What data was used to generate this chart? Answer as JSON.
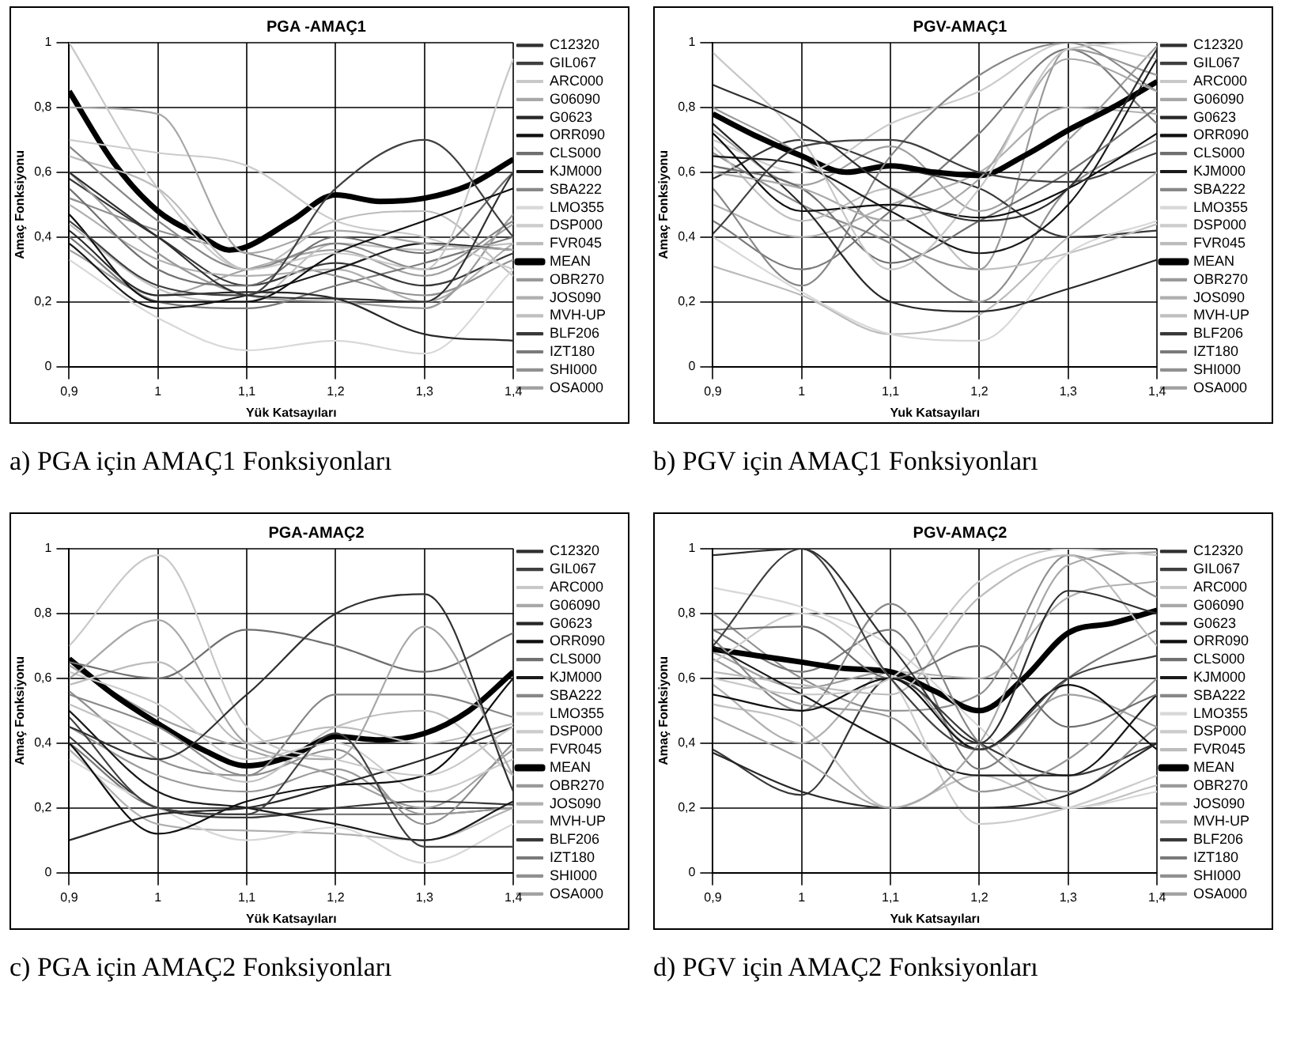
{
  "chart_data": [
    {
      "type": "line",
      "title": "PGA -AMAÇ1",
      "xlabel": "Yük Katsayıları",
      "ylabel": "Amaç Fonksiyonu",
      "annotations": [
        "a) PGA için AMAÇ1 Fonksiyonları"
      ],
      "legend": "right",
      "grid": true,
      "xlim": [
        0.9,
        1.4
      ],
      "xticks": [
        {
          "value": 0.9,
          "label": "0,9"
        },
        {
          "value": 1,
          "label": "1"
        },
        {
          "value": 1.1,
          "label": "1,1"
        },
        {
          "value": 1.2,
          "label": "1,2"
        },
        {
          "value": 1.3,
          "label": "1,3"
        },
        {
          "value": 1.4,
          "label": "1,4"
        }
      ],
      "ylim": [
        0,
        1
      ],
      "yticks": [
        {
          "value": 0,
          "label": "0"
        },
        {
          "value": 0.2,
          "label": "0,2"
        },
        {
          "value": 0.4,
          "label": "0,4"
        },
        {
          "value": 0.6,
          "label": "0,6"
        },
        {
          "value": 0.8,
          "label": "0,8"
        },
        {
          "value": 1,
          "label": "1"
        }
      ],
      "x": [
        0.9,
        1.0,
        1.1,
        1.2,
        1.3,
        1.4
      ],
      "series": [
        {
          "name": "C12320",
          "color": "#303030",
          "values": [
            0.6,
            0.4,
            0.22,
            0.21,
            0.2,
            0.6
          ]
        },
        {
          "name": "GIL067",
          "color": "#404040",
          "values": [
            0.45,
            0.25,
            0.22,
            0.55,
            0.7,
            0.4
          ]
        },
        {
          "name": "ARC000",
          "color": "#c8c8c8",
          "values": [
            1.0,
            0.55,
            0.3,
            0.35,
            0.3,
            0.95
          ]
        },
        {
          "name": "G06090",
          "color": "#a8a8a8",
          "values": [
            0.8,
            0.78,
            0.35,
            0.42,
            0.38,
            0.36
          ]
        },
        {
          "name": "G0623",
          "color": "#282828",
          "values": [
            0.42,
            0.22,
            0.23,
            0.21,
            0.1,
            0.08
          ]
        },
        {
          "name": "ORR090",
          "color": "#101010",
          "values": [
            0.47,
            0.2,
            0.2,
            0.35,
            0.45,
            0.55
          ]
        },
        {
          "name": "CLS000",
          "color": "#707070",
          "values": [
            0.55,
            0.3,
            0.25,
            0.4,
            0.35,
            0.6
          ]
        },
        {
          "name": "KJM000",
          "color": "#1a1a1a",
          "values": [
            0.38,
            0.18,
            0.22,
            0.3,
            0.38,
            0.36
          ]
        },
        {
          "name": "SBA222",
          "color": "#888888",
          "values": [
            0.68,
            0.45,
            0.3,
            0.38,
            0.3,
            0.45
          ]
        },
        {
          "name": "LMO355",
          "color": "#d8d8d8",
          "values": [
            0.33,
            0.15,
            0.05,
            0.08,
            0.04,
            0.3
          ]
        },
        {
          "name": "DSP000",
          "color": "#cccccc",
          "values": [
            0.7,
            0.66,
            0.62,
            0.45,
            0.4,
            0.3
          ]
        },
        {
          "name": "FVR045",
          "color": "#bcbcbc",
          "values": [
            0.65,
            0.55,
            0.3,
            0.45,
            0.48,
            0.28
          ]
        },
        {
          "name": "MEAN",
          "color": "#000000",
          "x": [
            0.9,
            0.95,
            1.0,
            1.05,
            1.08,
            1.1,
            1.15,
            1.2,
            1.25,
            1.3,
            1.35,
            1.4
          ],
          "values": [
            0.85,
            0.63,
            0.48,
            0.4,
            0.36,
            0.37,
            0.45,
            0.53,
            0.51,
            0.52,
            0.56,
            0.64
          ]
        },
        {
          "name": "OBR270",
          "color": "#9a9a9a",
          "values": [
            0.6,
            0.35,
            0.22,
            0.2,
            0.18,
            0.47
          ]
        },
        {
          "name": "JOS090",
          "color": "#b0b0b0",
          "values": [
            0.5,
            0.33,
            0.28,
            0.3,
            0.2,
            0.38
          ]
        },
        {
          "name": "MVH-UP",
          "color": "#c0c0c0",
          "values": [
            0.44,
            0.24,
            0.2,
            0.38,
            0.36,
            0.38
          ]
        },
        {
          "name": "BLF206",
          "color": "#383838",
          "values": [
            0.58,
            0.4,
            0.25,
            0.32,
            0.25,
            0.35
          ]
        },
        {
          "name": "IZT180",
          "color": "#7a7a7a",
          "values": [
            0.4,
            0.2,
            0.18,
            0.25,
            0.32,
            0.4
          ]
        },
        {
          "name": "SHI000",
          "color": "#909090",
          "values": [
            0.52,
            0.42,
            0.35,
            0.28,
            0.22,
            0.33
          ]
        },
        {
          "name": "OSA000",
          "color": "#a0a0a0",
          "values": [
            0.36,
            0.22,
            0.3,
            0.36,
            0.28,
            0.44
          ]
        }
      ]
    },
    {
      "type": "line",
      "title": "PGV-AMAÇ1",
      "xlabel": "Yuk Katsayıları",
      "ylabel": "Amaç Fonksiyonu",
      "annotations": [
        "b) PGV için AMAÇ1 Fonksiyonları"
      ],
      "legend": "right",
      "grid": true,
      "xlim": [
        0.9,
        1.4
      ],
      "xticks": [
        {
          "value": 0.9,
          "label": "0,9"
        },
        {
          "value": 1,
          "label": "1"
        },
        {
          "value": 1.1,
          "label": "1,1"
        },
        {
          "value": 1.2,
          "label": "1,2"
        },
        {
          "value": 1.3,
          "label": "1,3"
        },
        {
          "value": 1.4,
          "label": "1,4"
        }
      ],
      "ylim": [
        0,
        1
      ],
      "yticks": [
        {
          "value": 0,
          "label": "0"
        },
        {
          "value": 0.2,
          "label": "0,2"
        },
        {
          "value": 0.4,
          "label": "0,4"
        },
        {
          "value": 0.6,
          "label": "0,6"
        },
        {
          "value": 0.8,
          "label": "0,8"
        },
        {
          "value": 1,
          "label": "1"
        }
      ],
      "x": [
        0.9,
        1.0,
        1.1,
        1.2,
        1.3,
        1.4
      ],
      "series": [
        {
          "name": "C12320",
          "color": "#303030",
          "values": [
            0.87,
            0.75,
            0.55,
            0.45,
            0.55,
            0.98
          ]
        },
        {
          "name": "GIL067",
          "color": "#404040",
          "values": [
            0.41,
            0.68,
            0.7,
            0.6,
            0.57,
            0.66
          ]
        },
        {
          "name": "ARC000",
          "color": "#c8c8c8",
          "values": [
            0.97,
            0.7,
            0.3,
            0.55,
            0.98,
            1.0
          ]
        },
        {
          "name": "G06090",
          "color": "#a8a8a8",
          "values": [
            0.6,
            0.55,
            0.45,
            0.58,
            0.95,
            0.85
          ]
        },
        {
          "name": "G0623",
          "color": "#282828",
          "values": [
            0.75,
            0.5,
            0.2,
            0.17,
            0.24,
            0.33
          ]
        },
        {
          "name": "ORR090",
          "color": "#101010",
          "values": [
            0.72,
            0.48,
            0.5,
            0.46,
            0.55,
            0.72
          ]
        },
        {
          "name": "CLS000",
          "color": "#707070",
          "values": [
            0.62,
            0.55,
            0.32,
            0.45,
            0.6,
            0.8
          ]
        },
        {
          "name": "KJM000",
          "color": "#1a1a1a",
          "values": [
            0.65,
            0.62,
            0.48,
            0.35,
            0.5,
            0.95
          ]
        },
        {
          "name": "SBA222",
          "color": "#888888",
          "values": [
            0.55,
            0.25,
            0.65,
            0.9,
            1.0,
            0.85
          ]
        },
        {
          "name": "LMO355",
          "color": "#d8d8d8",
          "values": [
            0.4,
            0.23,
            0.1,
            0.08,
            0.35,
            0.45
          ]
        },
        {
          "name": "DSP000",
          "color": "#cccccc",
          "values": [
            0.7,
            0.6,
            0.75,
            0.85,
            1.0,
            0.95
          ]
        },
        {
          "name": "FVR045",
          "color": "#bcbcbc",
          "values": [
            0.31,
            0.22,
            0.1,
            0.16,
            0.4,
            0.6
          ]
        },
        {
          "name": "MEAN",
          "color": "#000000",
          "x": [
            0.9,
            0.95,
            1.0,
            1.05,
            1.1,
            1.15,
            1.2,
            1.25,
            1.3,
            1.35,
            1.4
          ],
          "values": [
            0.78,
            0.71,
            0.65,
            0.6,
            0.62,
            0.6,
            0.59,
            0.65,
            0.73,
            0.8,
            0.88
          ]
        },
        {
          "name": "OBR270",
          "color": "#9a9a9a",
          "values": [
            0.8,
            0.65,
            0.4,
            0.3,
            0.98,
            0.9
          ]
        },
        {
          "name": "JOS090",
          "color": "#b0b0b0",
          "values": [
            0.5,
            0.4,
            0.5,
            0.6,
            0.8,
            0.78
          ]
        },
        {
          "name": "MVH-UP",
          "color": "#c0c0c0",
          "values": [
            0.68,
            0.45,
            0.55,
            0.3,
            0.35,
            0.44
          ]
        },
        {
          "name": "BLF206",
          "color": "#383838",
          "values": [
            0.58,
            0.7,
            0.62,
            0.55,
            0.4,
            0.42
          ]
        },
        {
          "name": "IZT180",
          "color": "#7a7a7a",
          "values": [
            0.45,
            0.3,
            0.48,
            0.72,
            0.98,
            0.75
          ]
        },
        {
          "name": "SHI000",
          "color": "#909090",
          "values": [
            0.66,
            0.5,
            0.38,
            0.2,
            0.55,
            0.7
          ]
        },
        {
          "name": "OSA000",
          "color": "#a0a0a0",
          "values": [
            0.73,
            0.56,
            0.68,
            0.48,
            0.7,
            0.99
          ]
        }
      ]
    },
    {
      "type": "line",
      "title": "PGA-AMAÇ2",
      "xlabel": "Yük Katsayıları",
      "ylabel": "Amaç Fonksiyonu",
      "annotations": [
        "c) PGA için AMAÇ2 Fonksiyonları"
      ],
      "legend": "right",
      "grid": true,
      "xlim": [
        0.9,
        1.4
      ],
      "xticks": [
        {
          "value": 0.9,
          "label": "0,9"
        },
        {
          "value": 1,
          "label": "1"
        },
        {
          "value": 1.1,
          "label": "1,1"
        },
        {
          "value": 1.2,
          "label": "1,2"
        },
        {
          "value": 1.3,
          "label": "1,3"
        },
        {
          "value": 1.4,
          "label": "1,4"
        }
      ],
      "ylim": [
        0,
        1
      ],
      "yticks": [
        {
          "value": 0,
          "label": "0"
        },
        {
          "value": 0.2,
          "label": "0,2"
        },
        {
          "value": 0.4,
          "label": "0,4"
        },
        {
          "value": 0.6,
          "label": "0,6"
        },
        {
          "value": 0.8,
          "label": "0,8"
        },
        {
          "value": 1,
          "label": "1"
        }
      ],
      "x": [
        0.9,
        1.0,
        1.1,
        1.2,
        1.3,
        1.4
      ],
      "series": [
        {
          "name": "C12320",
          "color": "#303030",
          "values": [
            0.45,
            0.35,
            0.55,
            0.8,
            0.86,
            0.25
          ]
        },
        {
          "name": "GIL067",
          "color": "#404040",
          "values": [
            0.48,
            0.2,
            0.18,
            0.43,
            0.08,
            0.08
          ]
        },
        {
          "name": "ARC000",
          "color": "#c8c8c8",
          "values": [
            0.7,
            0.98,
            0.45,
            0.35,
            0.3,
            0.45
          ]
        },
        {
          "name": "G06090",
          "color": "#a8a8a8",
          "values": [
            0.6,
            0.78,
            0.4,
            0.35,
            0.76,
            0.3
          ]
        },
        {
          "name": "G0623",
          "color": "#282828",
          "values": [
            0.1,
            0.18,
            0.2,
            0.27,
            0.35,
            0.45
          ]
        },
        {
          "name": "ORR090",
          "color": "#101010",
          "values": [
            0.4,
            0.12,
            0.22,
            0.27,
            0.3,
            0.6
          ]
        },
        {
          "name": "CLS000",
          "color": "#707070",
          "values": [
            0.65,
            0.6,
            0.75,
            0.7,
            0.62,
            0.74
          ]
        },
        {
          "name": "KJM000",
          "color": "#1a1a1a",
          "values": [
            0.5,
            0.25,
            0.2,
            0.15,
            0.1,
            0.22
          ]
        },
        {
          "name": "SBA222",
          "color": "#888888",
          "values": [
            0.55,
            0.45,
            0.3,
            0.55,
            0.55,
            0.48
          ]
        },
        {
          "name": "LMO355",
          "color": "#d8d8d8",
          "values": [
            0.35,
            0.2,
            0.1,
            0.14,
            0.03,
            0.15
          ]
        },
        {
          "name": "DSP000",
          "color": "#cccccc",
          "values": [
            0.62,
            0.52,
            0.35,
            0.4,
            0.25,
            0.35
          ]
        },
        {
          "name": "FVR045",
          "color": "#bcbcbc",
          "values": [
            0.58,
            0.65,
            0.4,
            0.45,
            0.4,
            0.46
          ]
        },
        {
          "name": "MEAN",
          "color": "#000000",
          "x": [
            0.9,
            0.95,
            1.0,
            1.05,
            1.1,
            1.15,
            1.2,
            1.25,
            1.3,
            1.35,
            1.4
          ],
          "values": [
            0.66,
            0.55,
            0.46,
            0.38,
            0.33,
            0.36,
            0.42,
            0.41,
            0.43,
            0.5,
            0.62
          ]
        },
        {
          "name": "OBR270",
          "color": "#9a9a9a",
          "values": [
            0.45,
            0.3,
            0.25,
            0.32,
            0.18,
            0.2
          ]
        },
        {
          "name": "JOS090",
          "color": "#b0b0b0",
          "values": [
            0.38,
            0.15,
            0.13,
            0.12,
            0.1,
            0.2
          ]
        },
        {
          "name": "MVH-UP",
          "color": "#c0c0c0",
          "values": [
            0.52,
            0.4,
            0.28,
            0.45,
            0.5,
            0.3
          ]
        },
        {
          "name": "BLF206",
          "color": "#383838",
          "values": [
            0.42,
            0.2,
            0.17,
            0.2,
            0.22,
            0.21
          ]
        },
        {
          "name": "IZT180",
          "color": "#7a7a7a",
          "values": [
            0.4,
            0.2,
            0.18,
            0.18,
            0.18,
            0.2
          ]
        },
        {
          "name": "SHI000",
          "color": "#909090",
          "values": [
            0.56,
            0.35,
            0.3,
            0.38,
            0.15,
            0.4
          ]
        },
        {
          "name": "OSA000",
          "color": "#a0a0a0",
          "values": [
            0.64,
            0.48,
            0.38,
            0.3,
            0.2,
            0.38
          ]
        }
      ]
    },
    {
      "type": "line",
      "title": "PGV-AMAÇ2",
      "xlabel": "Yuk Katsayıları",
      "ylabel": "Amaç Fonksiyonu",
      "annotations": [
        "d) PGV için AMAÇ2 Fonksiyonları"
      ],
      "legend": "right",
      "grid": true,
      "xlim": [
        0.9,
        1.4
      ],
      "xticks": [
        {
          "value": 0.9,
          "label": "0,9"
        },
        {
          "value": 1,
          "label": "1"
        },
        {
          "value": 1.1,
          "label": "1,1"
        },
        {
          "value": 1.2,
          "label": "1,2"
        },
        {
          "value": 1.3,
          "label": "1,3"
        },
        {
          "value": 1.4,
          "label": "1,4"
        }
      ],
      "ylim": [
        0,
        1
      ],
      "yticks": [
        {
          "value": 0,
          "label": "0"
        },
        {
          "value": 0.2,
          "label": "0,2"
        },
        {
          "value": 0.4,
          "label": "0,4"
        },
        {
          "value": 0.6,
          "label": "0,6"
        },
        {
          "value": 0.8,
          "label": "0,8"
        },
        {
          "value": 1,
          "label": "1"
        }
      ],
      "x": [
        0.9,
        1.0,
        1.1,
        1.2,
        1.3,
        1.4
      ],
      "series": [
        {
          "name": "C12320",
          "color": "#303030",
          "values": [
            0.98,
            1.0,
            0.7,
            0.4,
            0.87,
            0.8
          ]
        },
        {
          "name": "GIL067",
          "color": "#404040",
          "values": [
            0.7,
            1.0,
            0.6,
            0.38,
            0.6,
            0.67
          ]
        },
        {
          "name": "ARC000",
          "color": "#c8c8c8",
          "values": [
            0.6,
            0.55,
            0.6,
            0.9,
            1.0,
            0.98
          ]
        },
        {
          "name": "G06090",
          "color": "#a8a8a8",
          "values": [
            0.48,
            0.35,
            0.2,
            0.4,
            0.95,
            0.99
          ]
        },
        {
          "name": "G0623",
          "color": "#282828",
          "values": [
            0.37,
            0.25,
            0.2,
            0.2,
            0.24,
            0.4
          ]
        },
        {
          "name": "ORR090",
          "color": "#101010",
          "values": [
            0.55,
            0.5,
            0.6,
            0.38,
            0.58,
            0.38
          ]
        },
        {
          "name": "CLS000",
          "color": "#707070",
          "values": [
            0.75,
            0.76,
            0.6,
            0.7,
            0.45,
            0.55
          ]
        },
        {
          "name": "KJM000",
          "color": "#1a1a1a",
          "values": [
            0.7,
            0.55,
            0.4,
            0.3,
            0.3,
            0.55
          ]
        },
        {
          "name": "SBA222",
          "color": "#888888",
          "values": [
            0.72,
            0.5,
            0.83,
            0.4,
            0.25,
            0.45
          ]
        },
        {
          "name": "LMO355",
          "color": "#d8d8d8",
          "values": [
            0.88,
            0.82,
            0.7,
            0.45,
            0.2,
            0.25
          ]
        },
        {
          "name": "DSP000",
          "color": "#cccccc",
          "values": [
            0.65,
            0.8,
            0.6,
            0.15,
            0.2,
            0.3
          ]
        },
        {
          "name": "FVR045",
          "color": "#bcbcbc",
          "values": [
            0.62,
            0.58,
            0.55,
            0.85,
            0.98,
            0.7
          ]
        },
        {
          "name": "MEAN",
          "color": "#000000",
          "x": [
            0.9,
            0.95,
            1.0,
            1.05,
            1.1,
            1.15,
            1.2,
            1.25,
            1.3,
            1.35,
            1.4
          ],
          "values": [
            0.69,
            0.67,
            0.65,
            0.63,
            0.62,
            0.56,
            0.5,
            0.6,
            0.74,
            0.77,
            0.81
          ]
        },
        {
          "name": "OBR270",
          "color": "#9a9a9a",
          "values": [
            0.66,
            0.52,
            0.48,
            0.25,
            0.35,
            0.6
          ]
        },
        {
          "name": "JOS090",
          "color": "#b0b0b0",
          "values": [
            0.58,
            0.4,
            0.62,
            0.6,
            0.85,
            0.9
          ]
        },
        {
          "name": "MVH-UP",
          "color": "#c0c0c0",
          "values": [
            0.52,
            0.45,
            0.2,
            0.3,
            0.2,
            0.27
          ]
        },
        {
          "name": "BLF206",
          "color": "#383838",
          "values": [
            0.38,
            0.24,
            0.6,
            0.4,
            0.3,
            0.4
          ]
        },
        {
          "name": "IZT180",
          "color": "#7a7a7a",
          "values": [
            0.75,
            0.62,
            0.75,
            0.32,
            0.6,
            0.75
          ]
        },
        {
          "name": "SHI000",
          "color": "#909090",
          "values": [
            0.8,
            0.6,
            0.5,
            0.55,
            0.98,
            0.85
          ]
        },
        {
          "name": "OSA000",
          "color": "#a0a0a0",
          "values": [
            0.68,
            0.57,
            0.62,
            0.38,
            0.55,
            0.45
          ]
        }
      ]
    }
  ]
}
